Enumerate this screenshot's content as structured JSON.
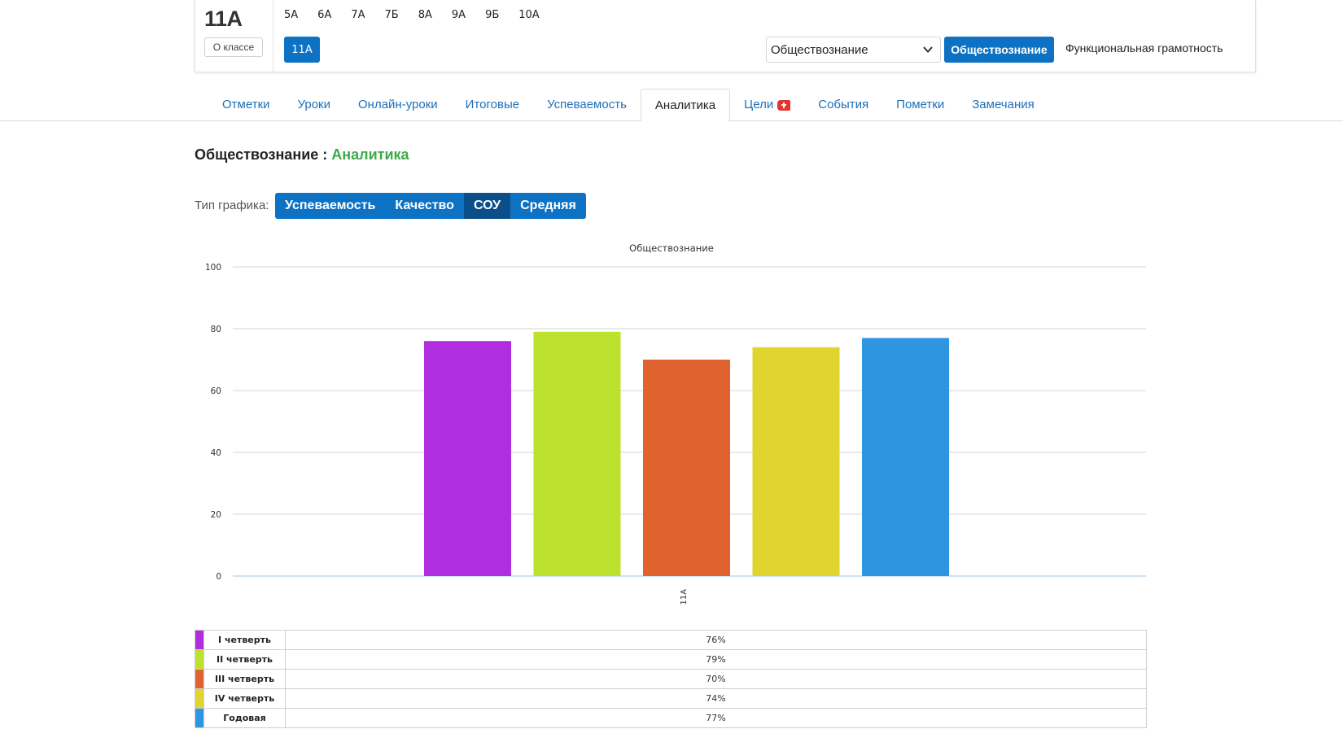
{
  "class_card": {
    "name": "11А",
    "about_label": "О классе",
    "classes": [
      "5А",
      "6А",
      "7А",
      "7Б",
      "8А",
      "9А",
      "9Б",
      "10А"
    ],
    "active_class": "11А",
    "subject_select_value": "Обществознание",
    "subject_button": "Обществознание",
    "subject_link": "Функциональная грамотность"
  },
  "tabs": [
    {
      "label": "Отметки"
    },
    {
      "label": "Уроки"
    },
    {
      "label": "Онлайн-уроки"
    },
    {
      "label": "Итоговые"
    },
    {
      "label": "Успеваемость"
    },
    {
      "label": "Аналитика",
      "active": true
    },
    {
      "label": "Цели",
      "badge": "plus"
    },
    {
      "label": "События"
    },
    {
      "label": "Пометки"
    },
    {
      "label": "Замечания"
    }
  ],
  "heading": {
    "subject": "Обществознание",
    "separator": " : ",
    "section": "Аналитика"
  },
  "chart_type": {
    "label": "Тип графика:",
    "options": [
      "Успеваемость",
      "Качество",
      "СОУ",
      "Средняя"
    ],
    "active": "СОУ"
  },
  "chart_data": {
    "type": "bar",
    "title": "Обществознание",
    "categories": [
      "11А"
    ],
    "series": [
      {
        "name": "I четверть",
        "values": [
          76
        ],
        "color": "#b02ee0"
      },
      {
        "name": "II четверть",
        "values": [
          79
        ],
        "color": "#bce12e"
      },
      {
        "name": "III четверть",
        "values": [
          70
        ],
        "color": "#e0622e"
      },
      {
        "name": "IV четверть",
        "values": [
          74
        ],
        "color": "#e0d52e"
      },
      {
        "name": "Годовая",
        "values": [
          77
        ],
        "color": "#2e96e0"
      }
    ],
    "ylim": [
      0,
      100
    ],
    "yticks": [
      "0",
      "20",
      "40",
      "60",
      "80",
      "100"
    ],
    "grid": true
  },
  "legend_rows": [
    {
      "name": "I четверть",
      "value": "76%",
      "color": "#b02ee0"
    },
    {
      "name": "II четверть",
      "value": "79%",
      "color": "#bce12e"
    },
    {
      "name": "III четверть",
      "value": "70%",
      "color": "#e0622e"
    },
    {
      "name": "IV четверть",
      "value": "74%",
      "color": "#e0d52e"
    },
    {
      "name": "Годовая",
      "value": "77%",
      "color": "#2e96e0"
    }
  ]
}
